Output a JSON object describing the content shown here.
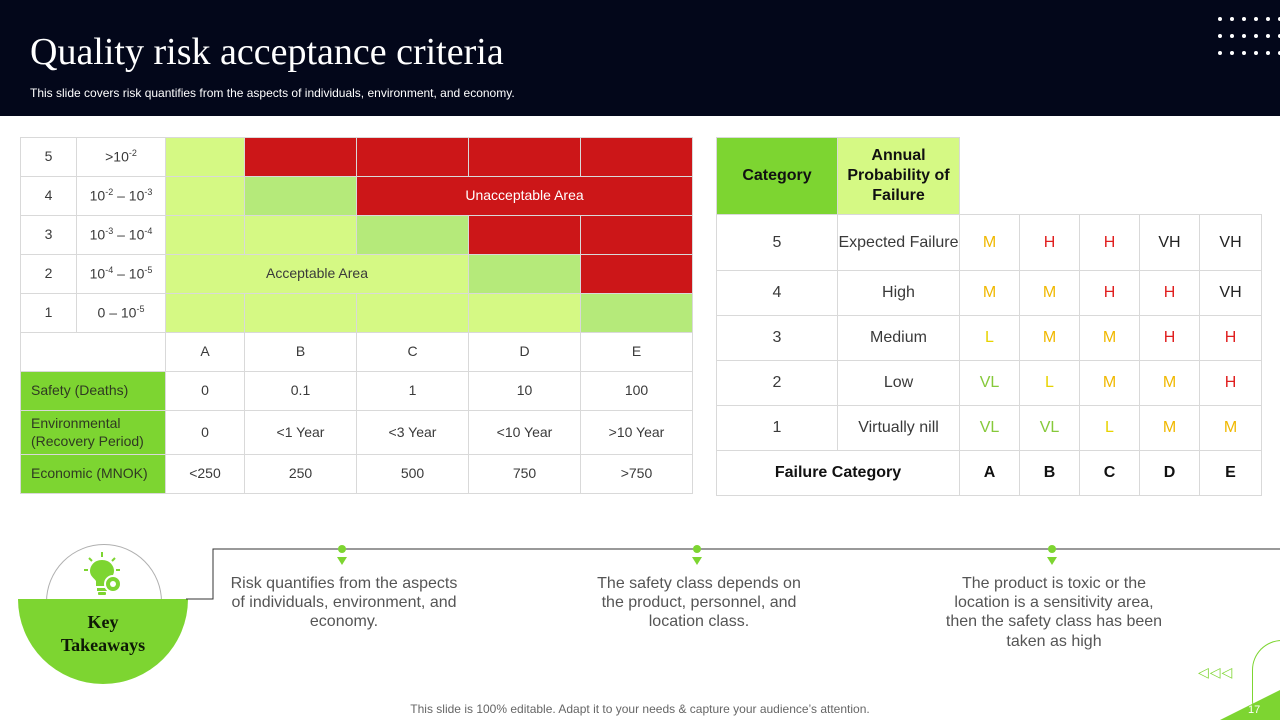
{
  "header": {
    "title": "Quality risk acceptance criteria",
    "subtitle": "This slide covers risk quantifies from the aspects of individuals, environment, and economy."
  },
  "risk_matrix": {
    "rows": [
      {
        "num": "5",
        "base": ">10",
        "exp": "-2",
        "mid": "",
        "exp2": ""
      },
      {
        "num": "4",
        "base": "10",
        "exp": "-2",
        "mid": " – 10",
        "exp2": "-3"
      },
      {
        "num": "3",
        "base": "10",
        "exp": "-3",
        "mid": " – 10",
        "exp2": "-4"
      },
      {
        "num": "2",
        "base": "10",
        "exp": "-4",
        "mid": " – 10",
        "exp2": "-5"
      },
      {
        "num": "1",
        "base": "0 – 10",
        "exp": "-5",
        "mid": "",
        "exp2": ""
      }
    ],
    "unacceptable_label": "Unacceptable Area",
    "acceptable_label": "Acceptable Area",
    "columns": [
      "A",
      "B",
      "C",
      "D",
      "E"
    ],
    "consequences": [
      {
        "label": "Safety (Deaths)",
        "values": [
          "0",
          "0.1",
          "1",
          "10",
          "100"
        ]
      },
      {
        "label": "Environmental (Recovery Period)",
        "values": [
          "0",
          "<1 Year",
          "<3 Year",
          "<10 Year",
          ">10 Year"
        ]
      },
      {
        "label": "Economic (MNOK)",
        "values": [
          "<250",
          "250",
          "500",
          "750",
          ">750"
        ]
      }
    ]
  },
  "failure_table": {
    "header_category": "Category",
    "header_probability": "Annual Probability of Failure",
    "rows": [
      {
        "num": "5",
        "label": "Expected Failure",
        "ratings": [
          "M",
          "H",
          "H",
          "VH",
          "VH"
        ]
      },
      {
        "num": "4",
        "label": "High",
        "ratings": [
          "M",
          "M",
          "H",
          "H",
          "VH"
        ]
      },
      {
        "num": "3",
        "label": "Medium",
        "ratings": [
          "L",
          "M",
          "M",
          "H",
          "H"
        ]
      },
      {
        "num": "2",
        "label": "Low",
        "ratings": [
          "VL",
          "L",
          "M",
          "M",
          "H"
        ]
      },
      {
        "num": "1",
        "label": "Virtually nill",
        "ratings": [
          "VL",
          "VL",
          "L",
          "M",
          "M"
        ]
      }
    ],
    "footer_label": "Failure Category",
    "footer_columns": [
      "A",
      "B",
      "C",
      "D",
      "E"
    ]
  },
  "takeaways": {
    "title_line1": "Key",
    "title_line2": "Takeaways",
    "points": [
      "Risk quantifies from the aspects of individuals, environment,  and economy.",
      "The safety class depends on the product, personnel, and location class.",
      "The product is toxic or the location is a sensitivity area, then the safety class has been taken as high"
    ]
  },
  "colors": {
    "header_bg": "#03071a",
    "green": "#7dd531",
    "light_green": "#d5f984",
    "mid_green": "#b5ea7a",
    "red": "#cc1618"
  },
  "nav": {
    "arrows": "◁◁◁",
    "page_number": "17"
  },
  "footer": {
    "text": "This slide is 100% editable. Adapt it to your needs & capture your audience’s attention."
  }
}
